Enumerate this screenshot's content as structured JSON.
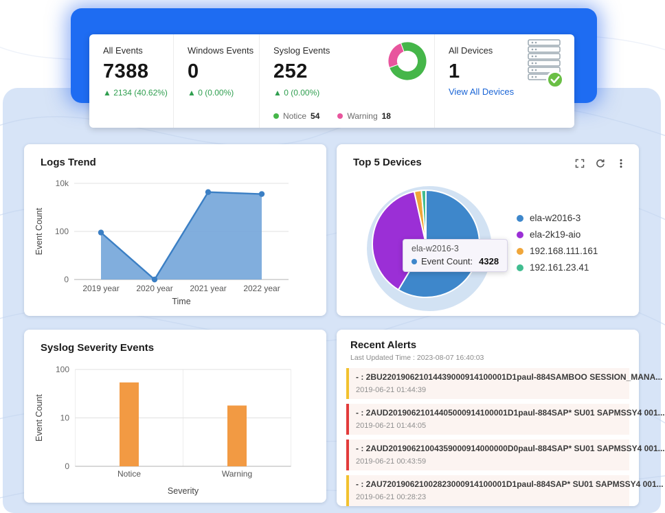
{
  "colors": {
    "banner_blue": "#1e6cf2",
    "panel_blue": "#d7e4f7",
    "link_blue": "#1a65d6",
    "delta_green": "#2f9e4f",
    "alert_yellow": "#f2c12e",
    "alert_red": "#e23b3b"
  },
  "stats": {
    "all_events": {
      "label": "All Events",
      "value": "7388",
      "delta": "▲ 2134 (40.62%)"
    },
    "windows_events": {
      "label": "Windows Events",
      "value": "0",
      "delta": "▲ 0 (0.00%)"
    },
    "syslog_events": {
      "label": "Syslog Events",
      "value": "252",
      "delta": "▲ 0 (0.00%)"
    },
    "syslog_legend": [
      {
        "label": "Notice",
        "value": "54",
        "color": "#45b649"
      },
      {
        "label": "Warning",
        "value": "18",
        "color": "#e8559d"
      }
    ],
    "all_devices": {
      "label": "All Devices",
      "value": "1",
      "link": "View All Devices"
    }
  },
  "cards": {
    "logs_trend": {
      "title": "Logs Trend"
    },
    "top5": {
      "title": "Top 5 Devices",
      "tooltip": {
        "device": "ela-w2016-3",
        "metric": "Event Count:",
        "value": "4328"
      }
    },
    "severity": {
      "title": "Syslog Severity Events"
    },
    "alerts": {
      "title": "Recent Alerts",
      "last_updated": "Last Updated Time : 2023-08-07 16:40:03",
      "items": [
        {
          "severity_color": "#f2c12e",
          "message": "- : 2BU220190621014439000914100001D1paul-884SAMBOO SESSION_MANA...",
          "time": "2019-06-21 01:44:39"
        },
        {
          "severity_color": "#e23b3b",
          "message": "- : 2AUD20190621014405000914100001D1paul-884SAP* SU01 SAPMSSY4 001...",
          "time": "2019-06-21 01:44:05"
        },
        {
          "severity_color": "#e23b3b",
          "message": "- : 2AUD20190621004359000914000000D0paul-884SAP* SU01 SAPMSSY4 001...",
          "time": "2019-06-21 00:43:59"
        },
        {
          "severity_color": "#f2c12e",
          "message": "- : 2AU720190621002823000914100001D1paul-884SAP* SU01 SAPMSSY4 001...",
          "time": "2019-06-21 00:28:23"
        }
      ]
    }
  },
  "chart_data": [
    {
      "id": "syslog-donut",
      "type": "pie",
      "labels": [
        "Notice",
        "Warning"
      ],
      "values": [
        54,
        18
      ],
      "colors": [
        "#45b649",
        "#e8559d"
      ],
      "inner_ratio": 0.52,
      "legend_position": "bottom"
    },
    {
      "id": "logs-trend",
      "type": "area",
      "title": "Logs Trend",
      "x": [
        "2019 year",
        "2020 year",
        "2021 year",
        "2022 year"
      ],
      "values": [
        90,
        0,
        4328,
        3600
      ],
      "xlabel": "Time",
      "ylabel": "Event Count",
      "yticks": [
        "0",
        "100",
        "10k"
      ],
      "scale": "log",
      "log_max": 4,
      "grid": true,
      "line_color": "#3b7fc4",
      "fill_color": "rgba(111,163,216,0.88)"
    },
    {
      "id": "top5-pie",
      "type": "pie",
      "title": "Top 5 Devices",
      "labels": [
        "ela-w2016-3",
        "ela-2k19-aio",
        "192.168.111.161",
        "192.161.23.41"
      ],
      "values": [
        4328,
        2800,
        160,
        100
      ],
      "colors": [
        "#3e87cb",
        "#9b2fd6",
        "#f0a63a",
        "#41bd90"
      ],
      "legend_position": "right"
    },
    {
      "id": "severity-bars",
      "type": "bar",
      "title": "Syslog Severity Events",
      "categories": [
        "Notice",
        "Warning"
      ],
      "values": [
        54,
        18
      ],
      "xlabel": "Severity",
      "ylabel": "Event Count",
      "yticks": [
        "0",
        "10",
        "100"
      ],
      "scale": "log",
      "log_max": 2,
      "grid": true,
      "bar_color": "#f29a43"
    }
  ]
}
